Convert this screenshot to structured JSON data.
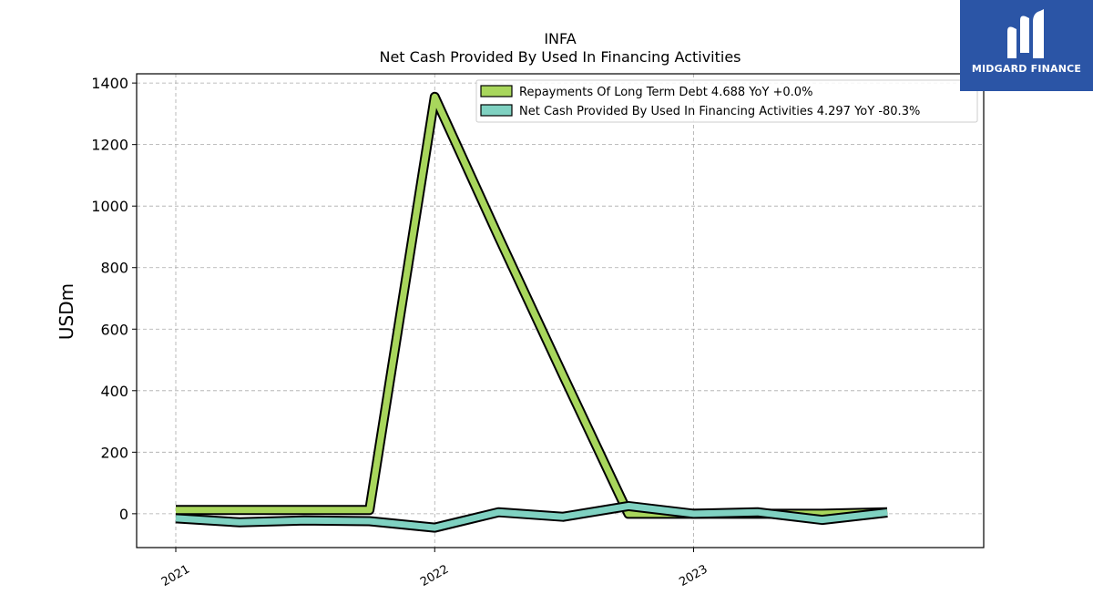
{
  "chart_data": {
    "type": "area",
    "title": "INFA",
    "subtitle": "Net Cash Provided By Used In Financing Activities",
    "ylabel": "USDm",
    "xlabel": "",
    "ylim": [
      -110,
      1430
    ],
    "yticks": [
      0,
      200,
      400,
      600,
      800,
      1000,
      1200,
      1400
    ],
    "x_axis": {
      "start": "2021-01-01",
      "end": "2023-12-31"
    },
    "xticks": [
      {
        "date": "2021-01-01",
        "label": "2021"
      },
      {
        "date": "2022-01-01",
        "label": "2022"
      },
      {
        "date": "2023-01-01",
        "label": "2023"
      }
    ],
    "x": [
      "2021-01-01",
      "2021-04-01",
      "2021-07-01",
      "2021-10-01",
      "2022-01-01",
      "2022-04-01",
      "2022-07-01",
      "2022-10-01",
      "2023-01-01",
      "2023-04-01",
      "2023-07-01",
      "2023-10-01"
    ],
    "series": [
      {
        "name": "Repayments Of Long Term Debt  4.688 YoY +0.0%",
        "color": "#a8d65c",
        "values": [
          12,
          12,
          12,
          12,
          1355,
          900,
          450,
          0,
          0,
          0,
          0,
          5
        ]
      },
      {
        "name": "Net Cash Provided By Used In Financing Activities  4.297 YoY -80.3%",
        "color": "#7fd1c1",
        "values": [
          -15,
          -28,
          -22,
          -24,
          -45,
          5,
          -10,
          25,
          0,
          5,
          -20,
          4
        ]
      }
    ],
    "grid": true,
    "legend_position": "top-right"
  },
  "logo": {
    "text": "MIDGARD FINANCE",
    "color": "#2b55a6"
  }
}
